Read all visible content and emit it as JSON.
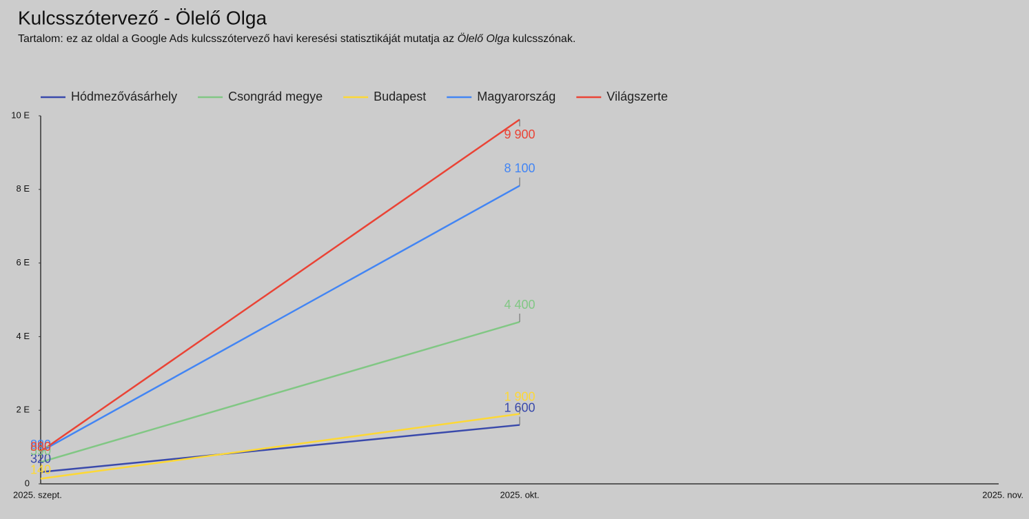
{
  "chart_data": {
    "type": "line",
    "title": "Kulcsszótervező - Ölelő Olga",
    "subtitle": [
      "Tartalom: ez az oldal a Google Ads kulcsszótervező havi keresési statisztikáját mutatja az ",
      "Ölelő Olga",
      " kulcsszónak."
    ],
    "categories": [
      "2025. szept.",
      "2025. okt.",
      "2025. nov."
    ],
    "series": [
      {
        "name": "Hódmezővásárhely",
        "color": "#3949ab",
        "values": [
          320,
          1600,
          null
        ],
        "value_labels": [
          "320",
          "1 600",
          null
        ]
      },
      {
        "name": "Csongrád megye",
        "color": "#81c784",
        "values": [
          590,
          4400,
          null
        ],
        "value_labels": [
          "590",
          "4 400",
          null
        ]
      },
      {
        "name": "Budapest",
        "color": "#fdd835",
        "values": [
          140,
          1900,
          null
        ],
        "value_labels": [
          "140",
          "1 900",
          null
        ]
      },
      {
        "name": "Magyarország",
        "color": "#4285f4",
        "values": [
          880,
          8100,
          null
        ],
        "value_labels": [
          "880",
          "8 100",
          null
        ]
      },
      {
        "name": "Világszerte",
        "color": "#ea4335",
        "values": [
          880,
          9900,
          null
        ],
        "value_labels": [
          "880",
          "9 900",
          null
        ]
      }
    ],
    "ylim": [
      0,
      10000
    ],
    "yticks": [
      0,
      {
        "value": 2000,
        "label": "2 E"
      },
      {
        "value": 4000,
        "label": "4 E"
      },
      {
        "value": 6000,
        "label": "6 E"
      },
      {
        "value": 8000,
        "label": "8 E"
      },
      {
        "value": 10000,
        "label": "10 E"
      }
    ],
    "grid": false,
    "legend": "top"
  }
}
